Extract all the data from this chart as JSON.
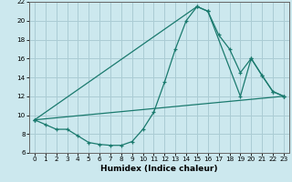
{
  "xlabel": "Humidex (Indice chaleur)",
  "bg_color": "#cce8ee",
  "grid_color": "#aaccd4",
  "line_color": "#1a7a6e",
  "ylim": [
    6,
    22
  ],
  "xlim": [
    -0.5,
    23.5
  ],
  "yticks": [
    6,
    8,
    10,
    12,
    14,
    16,
    18,
    20,
    22
  ],
  "xticks": [
    0,
    1,
    2,
    3,
    4,
    5,
    6,
    7,
    8,
    9,
    10,
    11,
    12,
    13,
    14,
    15,
    16,
    17,
    18,
    19,
    20,
    21,
    22,
    23
  ],
  "curve1_x": [
    0,
    1,
    2,
    3,
    4,
    5,
    6,
    7,
    8,
    9,
    10,
    11,
    12,
    13,
    14,
    15,
    16,
    17,
    18,
    19,
    20,
    21,
    22,
    23
  ],
  "curve1_y": [
    9.5,
    9.0,
    8.5,
    8.5,
    7.8,
    7.1,
    6.9,
    6.8,
    6.8,
    7.2,
    8.5,
    10.3,
    13.5,
    17.0,
    20.0,
    21.5,
    21.0,
    18.5,
    17.0,
    14.5,
    16.0,
    14.2,
    12.5,
    12.0
  ],
  "curve2_x": [
    0,
    15,
    16,
    19,
    20,
    21,
    22,
    23
  ],
  "curve2_y": [
    9.5,
    21.5,
    21.0,
    12.0,
    16.0,
    14.2,
    12.5,
    12.0
  ],
  "curve3_x": [
    0,
    23
  ],
  "curve3_y": [
    9.5,
    12.0
  ]
}
